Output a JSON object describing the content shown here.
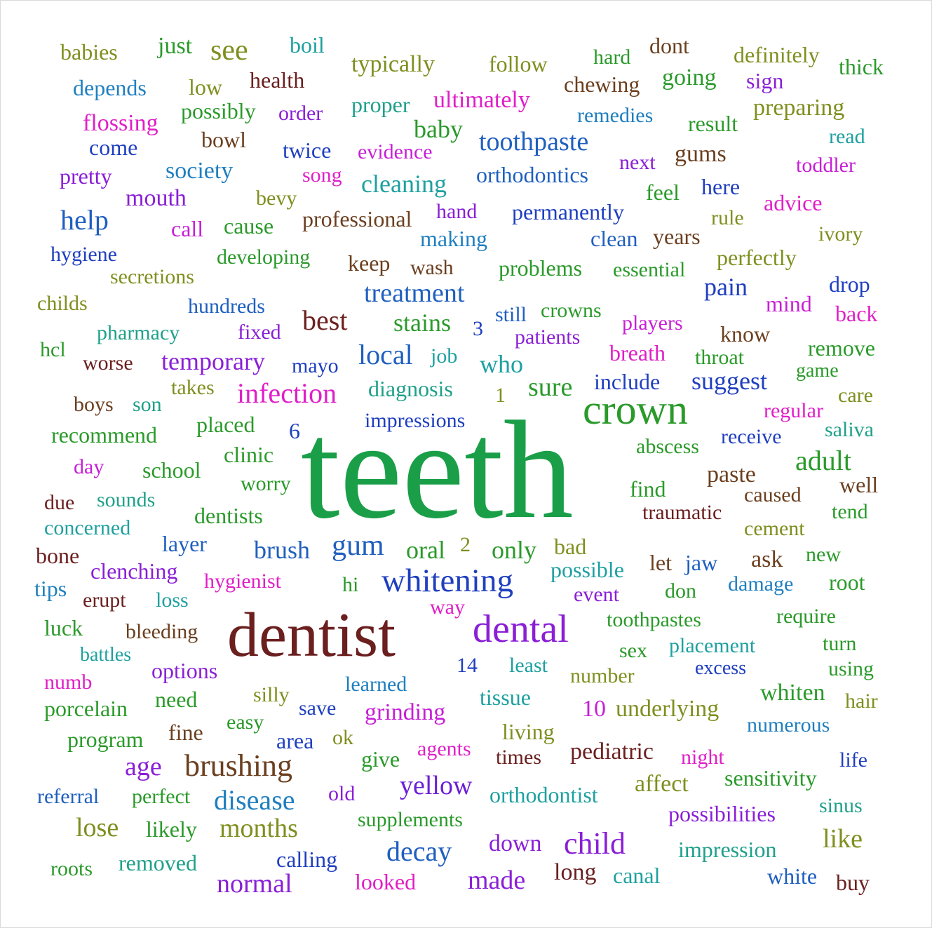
{
  "words": [
    {
      "text": "teeth",
      "color": "#1a9f48"
    },
    {
      "text": "dentist",
      "color": "#6b1f1f"
    },
    {
      "text": "crown",
      "color": "#2a9a2a"
    },
    {
      "text": "dental",
      "color": "#8a1fd6"
    },
    {
      "text": "whitening",
      "color": "#1f3fbf"
    },
    {
      "text": "brushing",
      "color": "#6b3f1f"
    },
    {
      "text": "infection",
      "color": "#e01fc7"
    },
    {
      "text": "child",
      "color": "#8a1fd6"
    },
    {
      "text": "treatment",
      "color": "#1f5fbf"
    },
    {
      "text": "toothpaste",
      "color": "#1f5fbf"
    },
    {
      "text": "gum",
      "color": "#1f5fbf"
    },
    {
      "text": "local",
      "color": "#1f5fbf"
    },
    {
      "text": "decay",
      "color": "#1f5fbf"
    },
    {
      "text": "disease",
      "color": "#1f7fbf"
    },
    {
      "text": "help",
      "color": "#1f5fbf"
    },
    {
      "text": "see",
      "color": "#7f8f1f"
    },
    {
      "text": "best",
      "color": "#6b1f1f"
    },
    {
      "text": "cleaning",
      "color": "#1fa0a0"
    },
    {
      "text": "stains",
      "color": "#2a9a2a"
    },
    {
      "text": "months",
      "color": "#7f8f1f"
    },
    {
      "text": "suggest",
      "color": "#1f3fbf"
    },
    {
      "text": "sure",
      "color": "#2a9a2a"
    },
    {
      "text": "normal",
      "color": "#8a1fd6"
    },
    {
      "text": "made",
      "color": "#8a1fd6"
    },
    {
      "text": "temporary",
      "color": "#8a1fd6"
    },
    {
      "text": "baby",
      "color": "#2a9a2a"
    },
    {
      "text": "brush",
      "color": "#1f5fbf"
    },
    {
      "text": "yellow",
      "color": "#6b1fd6"
    },
    {
      "text": "only",
      "color": "#2a9a2a"
    },
    {
      "text": "oral",
      "color": "#2a9a2a"
    },
    {
      "text": "adult",
      "color": "#2a9a2a"
    },
    {
      "text": "pain",
      "color": "#1f3fbf"
    },
    {
      "text": "like",
      "color": "#7f8f1f"
    },
    {
      "text": "age",
      "color": "#8a1fd6"
    },
    {
      "text": "lose",
      "color": "#7f8f1f"
    },
    {
      "text": "who",
      "color": "#1fa0a0"
    },
    {
      "text": "long",
      "color": "#6b1f1f"
    },
    {
      "text": "mouth",
      "color": "#8a1fd6"
    },
    {
      "text": "society",
      "color": "#1f7fbf"
    },
    {
      "text": "typically",
      "color": "#7f8f1f"
    },
    {
      "text": "ultimately",
      "color": "#e01fc7"
    },
    {
      "text": "going",
      "color": "#2a9a2a"
    },
    {
      "text": "gums",
      "color": "#6b3f1f"
    },
    {
      "text": "paste",
      "color": "#6b3f1f"
    },
    {
      "text": "problems",
      "color": "#2a9a2a"
    },
    {
      "text": "include",
      "color": "#1f3fbf"
    },
    {
      "text": "diagnosis",
      "color": "#1fa08a"
    },
    {
      "text": "orthodontics",
      "color": "#1f5fbf"
    },
    {
      "text": "orthodontist",
      "color": "#1fa0a0"
    },
    {
      "text": "pediatric",
      "color": "#6b1f1f"
    },
    {
      "text": "grinding",
      "color": "#c71fd6"
    },
    {
      "text": "underlying",
      "color": "#7f8f1f"
    },
    {
      "text": "whiten",
      "color": "#2a9a2a"
    },
    {
      "text": "boil",
      "color": "#1fa0a0"
    },
    {
      "text": "just",
      "color": "#2a9a2a"
    },
    {
      "text": "babies",
      "color": "#7f8f1f"
    },
    {
      "text": "depends",
      "color": "#1f7fbf"
    },
    {
      "text": "low",
      "color": "#7f8f1f"
    },
    {
      "text": "health",
      "color": "#6b1f1f"
    },
    {
      "text": "follow",
      "color": "#7f8f1f"
    },
    {
      "text": "hard",
      "color": "#2a9a2a"
    },
    {
      "text": "dont",
      "color": "#6b3f1f"
    },
    {
      "text": "definitely",
      "color": "#7f8f1f"
    },
    {
      "text": "thick",
      "color": "#2a9a2a"
    },
    {
      "text": "chewing",
      "color": "#6b3f1f"
    },
    {
      "text": "sign",
      "color": "#8a1fd6"
    },
    {
      "text": "flossing",
      "color": "#e01fc7"
    },
    {
      "text": "possibly",
      "color": "#2a9a2a"
    },
    {
      "text": "order",
      "color": "#8a1fd6"
    },
    {
      "text": "proper",
      "color": "#1fa08a"
    },
    {
      "text": "remedies",
      "color": "#1f7fbf"
    },
    {
      "text": "result",
      "color": "#2a9a2a"
    },
    {
      "text": "preparing",
      "color": "#7f8f1f"
    },
    {
      "text": "come",
      "color": "#1f3fbf"
    },
    {
      "text": "bowl",
      "color": "#6b3f1f"
    },
    {
      "text": "twice",
      "color": "#1f3fbf"
    },
    {
      "text": "evidence",
      "color": "#c71fd6"
    },
    {
      "text": "read",
      "color": "#1fa0a0"
    },
    {
      "text": "pretty",
      "color": "#8a1fd6"
    },
    {
      "text": "song",
      "color": "#e01fc7"
    },
    {
      "text": "next",
      "color": "#8a1fd6"
    },
    {
      "text": "toddler",
      "color": "#c71fd6"
    },
    {
      "text": "bevy",
      "color": "#7f8f1f"
    },
    {
      "text": "feel",
      "color": "#2a9a2a"
    },
    {
      "text": "here",
      "color": "#1f3fbf"
    },
    {
      "text": "advice",
      "color": "#e01fc7"
    },
    {
      "text": "call",
      "color": "#c71fd6"
    },
    {
      "text": "cause",
      "color": "#2a9a2a"
    },
    {
      "text": "professional",
      "color": "#6b3f1f"
    },
    {
      "text": "hand",
      "color": "#8a1fd6"
    },
    {
      "text": "permanently",
      "color": "#1f3fbf"
    },
    {
      "text": "rule",
      "color": "#7f8f1f"
    },
    {
      "text": "making",
      "color": "#1f7fbf"
    },
    {
      "text": "clean",
      "color": "#1f5fbf"
    },
    {
      "text": "years",
      "color": "#6b3f1f"
    },
    {
      "text": "ivory",
      "color": "#7f8f1f"
    },
    {
      "text": "hygiene",
      "color": "#1f3fbf"
    },
    {
      "text": "developing",
      "color": "#2a9a2a"
    },
    {
      "text": "keep",
      "color": "#6b3f1f"
    },
    {
      "text": "wash",
      "color": "#6b3f1f"
    },
    {
      "text": "essential",
      "color": "#2a9a2a"
    },
    {
      "text": "perfectly",
      "color": "#7f8f1f"
    },
    {
      "text": "secretions",
      "color": "#7f8f1f"
    },
    {
      "text": "drop",
      "color": "#1f3fbf"
    },
    {
      "text": "childs",
      "color": "#7f8f1f"
    },
    {
      "text": "hundreds",
      "color": "#1f5fbf"
    },
    {
      "text": "still",
      "color": "#1f5fbf"
    },
    {
      "text": "crowns",
      "color": "#2a9a2a"
    },
    {
      "text": "mind",
      "color": "#c71fd6"
    },
    {
      "text": "back",
      "color": "#e01fc7"
    },
    {
      "text": "pharmacy",
      "color": "#1fa08a"
    },
    {
      "text": "fixed",
      "color": "#8a1fd6"
    },
    {
      "text": "3",
      "color": "#1f3fbf"
    },
    {
      "text": "players",
      "color": "#c71fd6"
    },
    {
      "text": "know",
      "color": "#6b3f1f"
    },
    {
      "text": "patients",
      "color": "#8a1fd6"
    },
    {
      "text": "hcl",
      "color": "#2a9a2a"
    },
    {
      "text": "worse",
      "color": "#6b1f1f"
    },
    {
      "text": "mayo",
      "color": "#1f3fbf"
    },
    {
      "text": "job",
      "color": "#1fa0a0"
    },
    {
      "text": "breath",
      "color": "#e01fc7"
    },
    {
      "text": "throat",
      "color": "#2a9a2a"
    },
    {
      "text": "remove",
      "color": "#2a9a2a"
    },
    {
      "text": "game",
      "color": "#2a9a2a"
    },
    {
      "text": "takes",
      "color": "#7f8f1f"
    },
    {
      "text": "1",
      "color": "#7f8f1f"
    },
    {
      "text": "boys",
      "color": "#6b3f1f"
    },
    {
      "text": "son",
      "color": "#1fa08a"
    },
    {
      "text": "regular",
      "color": "#e01fc7"
    },
    {
      "text": "care",
      "color": "#7f8f1f"
    },
    {
      "text": "recommend",
      "color": "#2a9a2a"
    },
    {
      "text": "placed",
      "color": "#2a9a2a"
    },
    {
      "text": "6",
      "color": "#1f3fbf"
    },
    {
      "text": "impressions",
      "color": "#1f3fbf"
    },
    {
      "text": "saliva",
      "color": "#1fa08a"
    },
    {
      "text": "abscess",
      "color": "#2a9a2a"
    },
    {
      "text": "receive",
      "color": "#1f3fbf"
    },
    {
      "text": "day",
      "color": "#c71fd6"
    },
    {
      "text": "clinic",
      "color": "#2a9a2a"
    },
    {
      "text": "school",
      "color": "#2a9a2a"
    },
    {
      "text": "worry",
      "color": "#2a9a2a"
    },
    {
      "text": "find",
      "color": "#2a9a2a"
    },
    {
      "text": "caused",
      "color": "#6b3f1f"
    },
    {
      "text": "well",
      "color": "#6b3f1f"
    },
    {
      "text": "due",
      "color": "#6b1f1f"
    },
    {
      "text": "sounds",
      "color": "#1fa08a"
    },
    {
      "text": "traumatic",
      "color": "#6b1f1f"
    },
    {
      "text": "concerned",
      "color": "#1fa0a0"
    },
    {
      "text": "dentists",
      "color": "#2a9a2a"
    },
    {
      "text": "cement",
      "color": "#7f8f1f"
    },
    {
      "text": "tend",
      "color": "#2a9a2a"
    },
    {
      "text": "layer",
      "color": "#1f5fbf"
    },
    {
      "text": "2",
      "color": "#7f8f1f"
    },
    {
      "text": "bad",
      "color": "#7f8f1f"
    },
    {
      "text": "bone",
      "color": "#6b1f1f"
    },
    {
      "text": "ask",
      "color": "#6b3f1f"
    },
    {
      "text": "new",
      "color": "#2a9a2a"
    },
    {
      "text": "clenching",
      "color": "#8a1fd6"
    },
    {
      "text": "possible",
      "color": "#1fa0a0"
    },
    {
      "text": "let",
      "color": "#6b3f1f"
    },
    {
      "text": "jaw",
      "color": "#1f5fbf"
    },
    {
      "text": "tips",
      "color": "#1f7fbf"
    },
    {
      "text": "hygienist",
      "color": "#e01fc7"
    },
    {
      "text": "hi",
      "color": "#2a9a2a"
    },
    {
      "text": "damage",
      "color": "#1f7fbf"
    },
    {
      "text": "root",
      "color": "#2a9a2a"
    },
    {
      "text": "erupt",
      "color": "#6b1f1f"
    },
    {
      "text": "loss",
      "color": "#1fa0a0"
    },
    {
      "text": "event",
      "color": "#8a1fd6"
    },
    {
      "text": "don",
      "color": "#2a9a2a"
    },
    {
      "text": "way",
      "color": "#e01fc7"
    },
    {
      "text": "luck",
      "color": "#2a9a2a"
    },
    {
      "text": "bleeding",
      "color": "#6b3f1f"
    },
    {
      "text": "toothpastes",
      "color": "#2a9a2a"
    },
    {
      "text": "require",
      "color": "#2a9a2a"
    },
    {
      "text": "battles",
      "color": "#1fa0a0"
    },
    {
      "text": "sex",
      "color": "#2a9a2a"
    },
    {
      "text": "placement",
      "color": "#1fa0a0"
    },
    {
      "text": "turn",
      "color": "#2a9a2a"
    },
    {
      "text": "options",
      "color": "#8a1fd6"
    },
    {
      "text": "14",
      "color": "#1f3fbf"
    },
    {
      "text": "least",
      "color": "#1fa0a0"
    },
    {
      "text": "excess",
      "color": "#1f3fbf"
    },
    {
      "text": "numb",
      "color": "#e01fc7"
    },
    {
      "text": "learned",
      "color": "#1f7fbf"
    },
    {
      "text": "number",
      "color": "#7f8f1f"
    },
    {
      "text": "using",
      "color": "#2a9a2a"
    },
    {
      "text": "silly",
      "color": "#7f8f1f"
    },
    {
      "text": "porcelain",
      "color": "#2a9a2a"
    },
    {
      "text": "need",
      "color": "#2a9a2a"
    },
    {
      "text": "tissue",
      "color": "#1fa0a0"
    },
    {
      "text": "hair",
      "color": "#7f8f1f"
    },
    {
      "text": "save",
      "color": "#1f3fbf"
    },
    {
      "text": "10",
      "color": "#c71fd6"
    },
    {
      "text": "easy",
      "color": "#2a9a2a"
    },
    {
      "text": "numerous",
      "color": "#1f7fbf"
    },
    {
      "text": "fine",
      "color": "#6b3f1f"
    },
    {
      "text": "living",
      "color": "#7f8f1f"
    },
    {
      "text": "program",
      "color": "#2a9a2a"
    },
    {
      "text": "area",
      "color": "#1f3fbf"
    },
    {
      "text": "ok",
      "color": "#7f8f1f"
    },
    {
      "text": "give",
      "color": "#2a9a2a"
    },
    {
      "text": "agents",
      "color": "#e01fc7"
    },
    {
      "text": "times",
      "color": "#6b1f1f"
    },
    {
      "text": "night",
      "color": "#e01fc7"
    },
    {
      "text": "life",
      "color": "#1f3fbf"
    },
    {
      "text": "sensitivity",
      "color": "#2a9a2a"
    },
    {
      "text": "affect",
      "color": "#7f8f1f"
    },
    {
      "text": "referral",
      "color": "#1f5fbf"
    },
    {
      "text": "perfect",
      "color": "#2a9a2a"
    },
    {
      "text": "old",
      "color": "#8a1fd6"
    },
    {
      "text": "sinus",
      "color": "#1fa08a"
    },
    {
      "text": "possibilities",
      "color": "#8a1fd6"
    },
    {
      "text": "likely",
      "color": "#2a9a2a"
    },
    {
      "text": "supplements",
      "color": "#2a9a2a"
    },
    {
      "text": "down",
      "color": "#8a1fd6"
    },
    {
      "text": "impression",
      "color": "#1fa08a"
    },
    {
      "text": "roots",
      "color": "#2a9a2a"
    },
    {
      "text": "removed",
      "color": "#1fa08a"
    },
    {
      "text": "calling",
      "color": "#1f3fbf"
    },
    {
      "text": "canal",
      "color": "#1fa0a0"
    },
    {
      "text": "white",
      "color": "#1f5fbf"
    },
    {
      "text": "looked",
      "color": "#e01fc7"
    },
    {
      "text": "buy",
      "color": "#6b1f1f"
    }
  ]
}
